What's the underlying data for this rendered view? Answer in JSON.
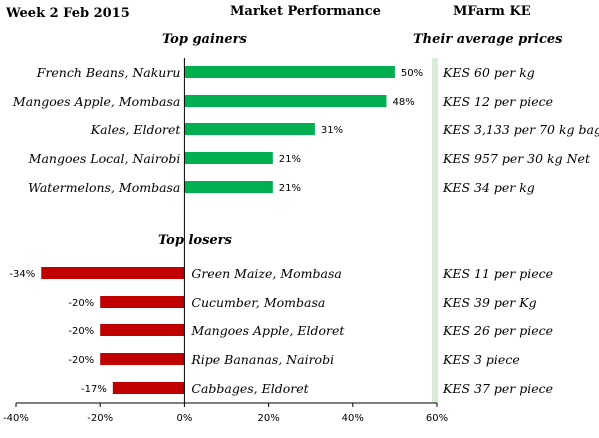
{
  "header": {
    "date": "Week 2 Feb 2015",
    "title": "Market Performance",
    "brand": "MFarm KE"
  },
  "subtitles": {
    "gainers": "Top gainers",
    "losers": "Top losers",
    "prices": "Their average prices"
  },
  "colors": {
    "gain": "#00b050",
    "loss": "#c00000",
    "divider": "#d8ecd8"
  },
  "chart_data": {
    "type": "bar",
    "orientation": "horizontal",
    "xlim": [
      -40,
      60
    ],
    "xticks": [
      "-40%",
      "-20%",
      "0%",
      "20%",
      "40%",
      "60%"
    ],
    "grid": false,
    "gainers": [
      {
        "label": "French Beans, Nakuru",
        "value": 50,
        "value_label": "50%",
        "price": "KES 60 per kg"
      },
      {
        "label": "Mangoes Apple, Mombasa",
        "value": 48,
        "value_label": "48%",
        "price": "KES 12 per piece"
      },
      {
        "label": "Kales, Eldoret",
        "value": 31,
        "value_label": "31%",
        "price": "KES 3,133 per 70 kg bag"
      },
      {
        "label": "Mangoes Local, Nairobi",
        "value": 21,
        "value_label": "21%",
        "price": "KES 957 per 30 kg Net"
      },
      {
        "label": "Watermelons, Mombasa",
        "value": 21,
        "value_label": "21%",
        "price": "KES 34 per kg"
      }
    ],
    "losers": [
      {
        "label": "Green Maize, Mombasa",
        "value": -34,
        "value_label": "-34%",
        "price": "KES 11 per piece"
      },
      {
        "label": "Cucumber, Mombasa",
        "value": -20,
        "value_label": "-20%",
        "price": "KES 39 per Kg"
      },
      {
        "label": "Mangoes Apple, Eldoret",
        "value": -20,
        "value_label": "-20%",
        "price": "KES 26 per piece"
      },
      {
        "label": "Ripe Bananas, Nairobi",
        "value": -20,
        "value_label": "-20%",
        "price": "KES 3 piece"
      },
      {
        "label": "Cabbages, Eldoret",
        "value": -17,
        "value_label": "-17%",
        "price": "KES 37 per piece"
      }
    ]
  }
}
